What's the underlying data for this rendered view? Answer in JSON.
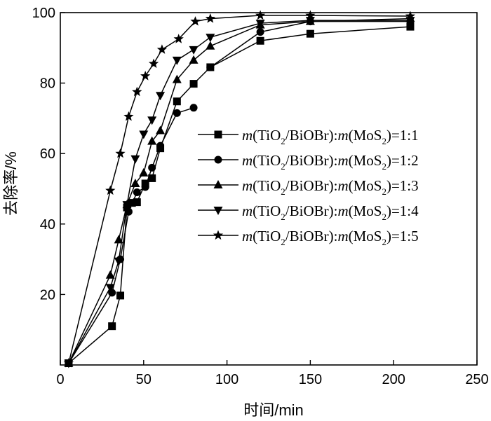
{
  "chart_data": {
    "type": "line",
    "xlabel": "时间/min",
    "ylabel": "去除率/%",
    "xlim": [
      0,
      250
    ],
    "ylim": [
      0,
      100
    ],
    "xticks": [
      0,
      50,
      100,
      150,
      200,
      250
    ],
    "yticks": [
      20,
      40,
      60,
      80,
      100
    ],
    "xtick_labels": [
      "0",
      "50",
      "100",
      "150",
      "200",
      "250"
    ],
    "ytick_labels": [
      "20",
      "40",
      "60",
      "80",
      "100"
    ],
    "grid": false,
    "legend_position": "right",
    "series": [
      {
        "name": "m(TiO2/BiOBr):m(MoS2)=1:1",
        "name_parts": {
          "m1": "m",
          "a": "(TiO",
          "s1": "2",
          "b": "/BiOBr):",
          "m2": "m",
          "c": "(MoS",
          "s2": "2",
          "d": ")=1:1"
        },
        "marker": "square",
        "x": [
          5,
          31,
          36,
          40,
          43,
          46,
          51,
          55,
          60,
          70,
          80,
          90,
          120,
          150,
          210
        ],
        "y": [
          0.5,
          11,
          19.7,
          44.7,
          46,
          46.2,
          51.5,
          53,
          61.5,
          74.8,
          79.8,
          84.5,
          92,
          94,
          96
        ]
      },
      {
        "name": "m(TiO2/BiOBr):m(MoS2)=1:2",
        "name_parts": {
          "m1": "m",
          "a": "(TiO",
          "s1": "2",
          "b": "/BiOBr):",
          "m2": "m",
          "c": "(MoS",
          "s2": "2",
          "d": ")=1:2"
        },
        "marker": "circle",
        "x": [
          5,
          31,
          36,
          41,
          46,
          51,
          55,
          60,
          70,
          80
        ],
        "y": [
          0.5,
          20.5,
          30,
          43.5,
          49,
          50.5,
          56,
          62.2,
          71.5,
          73
        ],
        "x2": [
          90,
          120,
          150,
          210
        ],
        "y2": [
          84.5,
          94.5,
          97.5,
          97.5
        ]
      },
      {
        "name": "m(TiO2/BiOBr):m(MoS2)=1:3",
        "name_parts": {
          "m1": "m",
          "a": "(TiO",
          "s1": "2",
          "b": "/BiOBr):",
          "m2": "m",
          "c": "(MoS",
          "s2": "2",
          "d": ")=1:3"
        },
        "marker": "triangle-up",
        "x": [
          5,
          30,
          35,
          40,
          45,
          50,
          55,
          60,
          70,
          80,
          90,
          120,
          150,
          210
        ],
        "y": [
          0.5,
          25.5,
          35.5,
          45.5,
          51.5,
          54.5,
          63.5,
          66.5,
          81,
          86.5,
          90.5,
          96.5,
          97.5,
          98.3
        ]
      },
      {
        "name": "m(TiO2/BiOBr):m(MoS2)=1:4",
        "name_parts": {
          "m1": "m",
          "a": "(TiO",
          "s1": "2",
          "b": "/BiOBr):",
          "m2": "m",
          "c": "(MoS",
          "s2": "2",
          "d": ")=1:4"
        },
        "marker": "triangle-down",
        "x": [
          5,
          30,
          35,
          40,
          45,
          50,
          55,
          60,
          70,
          80,
          90,
          120,
          150,
          210
        ],
        "y": [
          0.5,
          22,
          29.5,
          45.5,
          58.5,
          65.5,
          69.5,
          76.5,
          86.5,
          89.5,
          93,
          97,
          97.8,
          97.8
        ]
      },
      {
        "name": "m(TiO2/BiOBr):m(MoS2)=1:5",
        "name_parts": {
          "m1": "m",
          "a": "(TiO",
          "s1": "2",
          "b": "/BiOBr):",
          "m2": "m",
          "c": "(MoS",
          "s2": "2",
          "d": ")=1:5"
        },
        "marker": "star",
        "x": [
          5,
          30,
          36,
          41,
          46,
          51,
          56,
          61,
          71,
          81,
          90,
          120,
          150,
          210
        ],
        "y": [
          0.5,
          49.5,
          60,
          70.5,
          77.5,
          82,
          85.5,
          89.5,
          92.5,
          97.5,
          98.3,
          99.2,
          99.2,
          99
        ]
      }
    ]
  }
}
